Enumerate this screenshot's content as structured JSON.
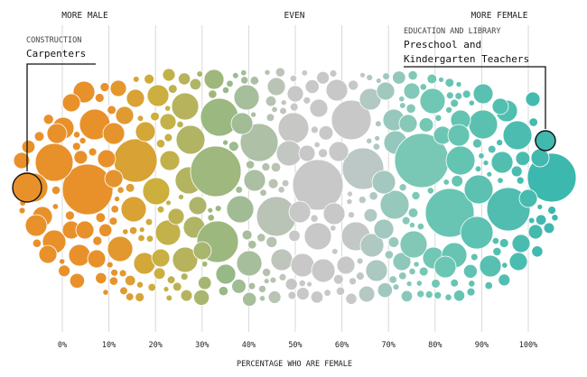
{
  "chart_data": {
    "type": "bubble",
    "xlabel": "PERCENTAGE WHO ARE FEMALE",
    "xlim": [
      -5,
      105
    ],
    "ticks": [
      {
        "value": 0,
        "label": "0%"
      },
      {
        "value": 10,
        "label": "10%"
      },
      {
        "value": 20,
        "label": "20%"
      },
      {
        "value": 30,
        "label": "30%"
      },
      {
        "value": 40,
        "label": "40%"
      },
      {
        "value": 50,
        "label": "50%"
      },
      {
        "value": 60,
        "label": "60%"
      },
      {
        "value": 70,
        "label": "70%"
      },
      {
        "value": 80,
        "label": "80%"
      },
      {
        "value": 90,
        "label": "90%"
      },
      {
        "value": 100,
        "label": "100%"
      }
    ],
    "grid": true,
    "top_labels": {
      "left": "MORE MALE",
      "center": "EVEN",
      "right": "MORE FEMALE"
    },
    "color_scale": {
      "male": "#e8912b",
      "middle": "#c8c8c8",
      "female": "#3db8ae"
    },
    "annotations": [
      {
        "category": "CONSTRUCTION",
        "occupation": "Carpenters",
        "pct_female": -3
      },
      {
        "category": "EDUCATION AND LIBRARY",
        "occupation_lines": [
          "Preschool and",
          "Kindergarten Teachers"
        ],
        "pct_female": 103
      }
    ]
  }
}
